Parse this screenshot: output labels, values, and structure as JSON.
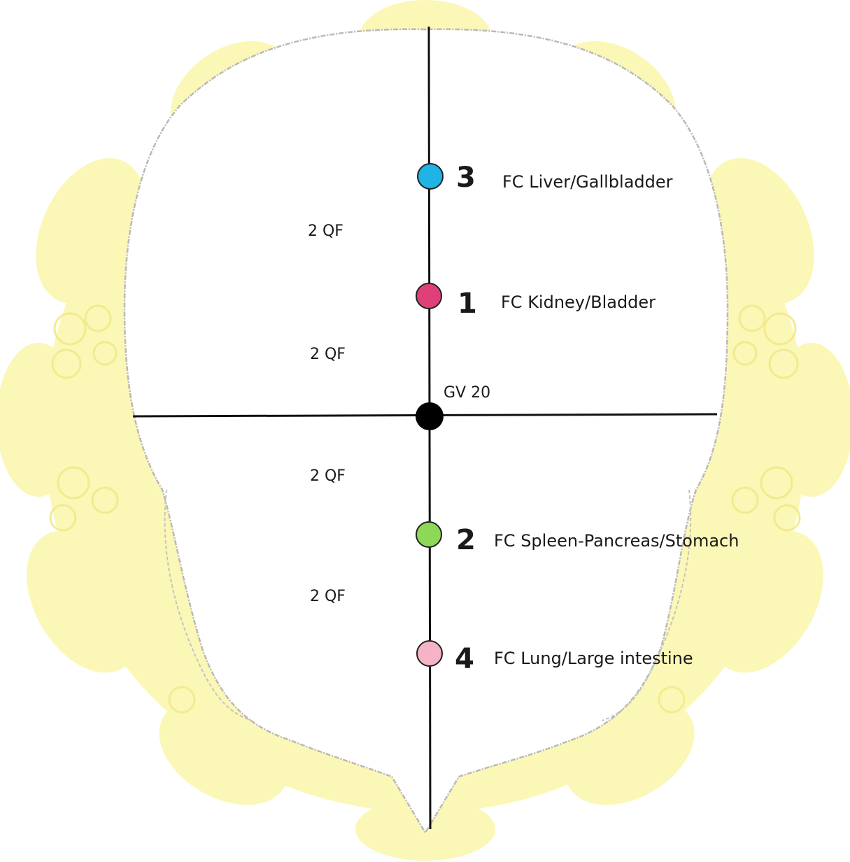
{
  "center_point": {
    "label": "GV 20",
    "color": "#000000"
  },
  "spacing_labels": [
    "2 QF",
    "2 QF",
    "2 QF",
    "2 QF"
  ],
  "points": [
    {
      "number": "3",
      "label": "FC Liver/Gallbladder",
      "color": "#1fb3e6"
    },
    {
      "number": "1",
      "label": "FC Kidney/Bladder",
      "color": "#e0407a"
    },
    {
      "number": "2",
      "label": "FC Spleen-Pancreas/Stomach",
      "color": "#8ed857"
    },
    {
      "number": "4",
      "label": "FC Lung/Large intestine",
      "color": "#f5b3c6"
    }
  ],
  "colors": {
    "background_lobes": "#fbf7b6",
    "background_lobe_cells": "#f4ee96",
    "head_outline": "#b9b9b9",
    "axis_lines": "#111111"
  }
}
